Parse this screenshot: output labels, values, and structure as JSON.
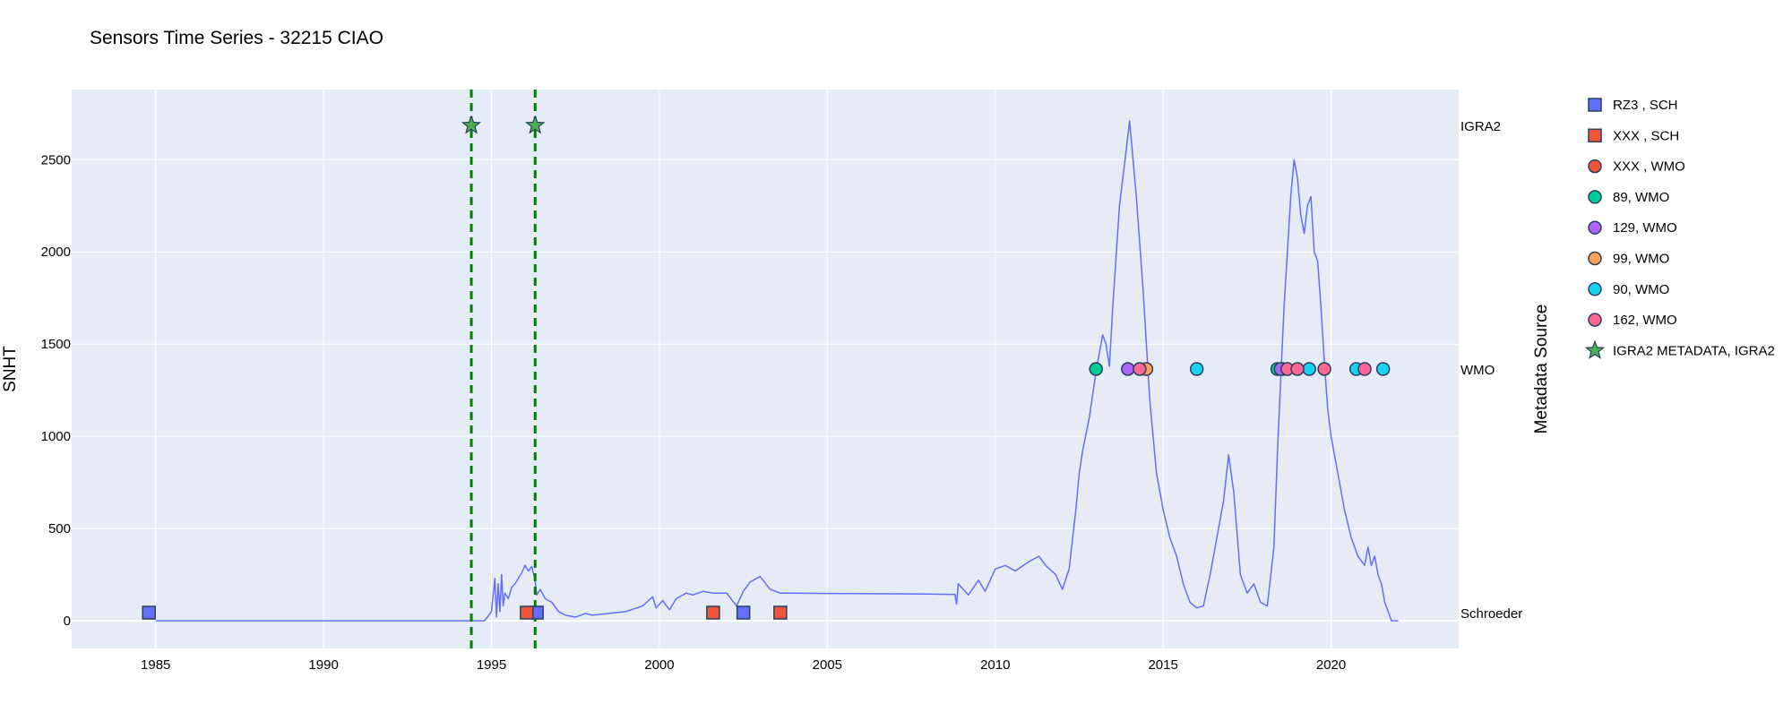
{
  "colors": {
    "plot_background": "#E5ECF6",
    "grid": "#FFFFFF",
    "snht_line": "#636EFA",
    "vline": "#008000",
    "marker_outline": "#2A3F5F"
  },
  "chart_data": {
    "type": "line",
    "title": "Sensors Time Series - 32215 CIAO",
    "xlabel": "",
    "ylabel": "SNHT",
    "y2label": "Metadata Source",
    "xlim": [
      1982.5,
      2023.8
    ],
    "ylim": [
      -150,
      2880
    ],
    "x_ticks": [
      1985,
      1990,
      1995,
      2000,
      2005,
      2010,
      2015,
      2020
    ],
    "y_ticks": [
      0,
      500,
      1000,
      1500,
      2000,
      2500
    ],
    "y2_categories": [
      "Schroeder",
      "WMO",
      "IGRA2"
    ],
    "grid": true,
    "legend_position": "right",
    "vertical_lines": [
      1994.4,
      1996.3
    ],
    "snht_series": {
      "name": "SNHT",
      "x": [
        1985.0,
        1994.8,
        1995.0,
        1995.1,
        1995.15,
        1995.2,
        1995.25,
        1995.3,
        1995.35,
        1995.4,
        1995.5,
        1995.6,
        1995.7,
        1995.8,
        1995.9,
        1996.0,
        1996.1,
        1996.2,
        1996.3,
        1996.35,
        1996.45,
        1996.6,
        1996.8,
        1997.0,
        1997.2,
        1997.5,
        1997.8,
        1998.0,
        1998.5,
        1999.0,
        1999.5,
        1999.8,
        1999.9,
        2000.1,
        2000.3,
        2000.5,
        2000.8,
        2001.0,
        2001.3,
        2001.6,
        2001.8,
        2002.0,
        2002.3,
        2002.5,
        2002.7,
        2003.0,
        2003.3,
        2003.6,
        2004.0,
        2005.0,
        2006.0,
        2007.0,
        2008.0,
        2008.8,
        2008.85,
        2008.9,
        2009.2,
        2009.5,
        2009.7,
        2009.9,
        2010.0,
        2010.3,
        2010.6,
        2011.0,
        2011.3,
        2011.5,
        2011.8,
        2012.0,
        2012.2,
        2012.4,
        2012.5,
        2012.6,
        2012.8,
        2013.0,
        2013.1,
        2013.2,
        2013.3,
        2013.4,
        2013.5,
        2013.7,
        2013.9,
        2014.0,
        2014.2,
        2014.4,
        2014.6,
        2014.8,
        2015.0,
        2015.2,
        2015.4,
        2015.6,
        2015.8,
        2016.0,
        2016.2,
        2016.4,
        2016.6,
        2016.8,
        2016.95,
        2017.1,
        2017.3,
        2017.5,
        2017.7,
        2017.9,
        2018.1,
        2018.3,
        2018.4,
        2018.5,
        2018.6,
        2018.7,
        2018.8,
        2018.9,
        2019.0,
        2019.1,
        2019.2,
        2019.3,
        2019.4,
        2019.5,
        2019.6,
        2019.7,
        2019.8,
        2019.9,
        2020.0,
        2020.2,
        2020.4,
        2020.6,
        2020.8,
        2021.0,
        2021.1,
        2021.2,
        2021.3,
        2021.4,
        2021.5,
        2021.6,
        2021.7,
        2021.8,
        2022.0
      ],
      "y": [
        0,
        0,
        50,
        230,
        20,
        200,
        50,
        250,
        80,
        150,
        120,
        180,
        200,
        230,
        260,
        300,
        270,
        295,
        220,
        140,
        170,
        120,
        100,
        50,
        30,
        20,
        40,
        30,
        40,
        50,
        80,
        130,
        70,
        110,
        60,
        120,
        150,
        140,
        160,
        150,
        150,
        150,
        80,
        160,
        210,
        240,
        170,
        150,
        150,
        148,
        147,
        146,
        145,
        143,
        90,
        200,
        140,
        220,
        160,
        240,
        280,
        300,
        270,
        320,
        350,
        300,
        250,
        170,
        280,
        600,
        800,
        920,
        1100,
        1350,
        1450,
        1550,
        1500,
        1380,
        1700,
        2250,
        2550,
        2710,
        2300,
        1800,
        1200,
        800,
        600,
        450,
        350,
        200,
        100,
        70,
        80,
        250,
        450,
        650,
        900,
        700,
        250,
        150,
        200,
        100,
        80,
        400,
        900,
        1300,
        1700,
        2000,
        2300,
        2500,
        2400,
        2200,
        2100,
        2250,
        2300,
        2000,
        1950,
        1700,
        1400,
        1150,
        1000,
        800,
        600,
        450,
        350,
        300,
        400,
        300,
        350,
        250,
        200,
        100,
        50,
        0,
        0
      ]
    },
    "series": [
      {
        "name": "RZ3 , SCH",
        "symbol": "square",
        "color": "#636EFA",
        "row": "Schroeder",
        "x": [
          1984.8,
          1996.35,
          2002.5
        ]
      },
      {
        "name": "XXX , SCH",
        "symbol": "square",
        "color": "#EF553B",
        "row": "Schroeder",
        "x": [
          1996.05,
          2001.6,
          2003.6
        ]
      },
      {
        "name": "XXX , WMO",
        "symbol": "circle",
        "color": "#EF553B",
        "row": "WMO",
        "x": [
          2018.55
        ]
      },
      {
        "name": "89, WMO",
        "symbol": "circle",
        "color": "#00CC96",
        "row": "WMO",
        "x": [
          2013.0,
          2018.4
        ]
      },
      {
        "name": "129, WMO",
        "symbol": "circle",
        "color": "#AB63FA",
        "row": "WMO",
        "x": [
          2013.95,
          2018.5
        ]
      },
      {
        "name": "99, WMO",
        "symbol": "circle",
        "color": "#FFA15A",
        "row": "WMO",
        "x": [
          2014.5
        ]
      },
      {
        "name": "90, WMO",
        "symbol": "circle",
        "color": "#19D3F3",
        "row": "WMO",
        "x": [
          2016.0,
          2019.35,
          2020.75,
          2021.55
        ]
      },
      {
        "name": "162, WMO",
        "symbol": "circle",
        "color": "#FF6692",
        "row": "WMO",
        "x": [
          2014.3,
          2018.7,
          2019.0,
          2019.8,
          2021.0
        ]
      },
      {
        "name": "IGRA2 METADATA, IGRA2",
        "symbol": "star",
        "color": "#4CAF50",
        "row": "IGRA2",
        "x": [
          1994.4,
          1996.3
        ]
      }
    ]
  }
}
